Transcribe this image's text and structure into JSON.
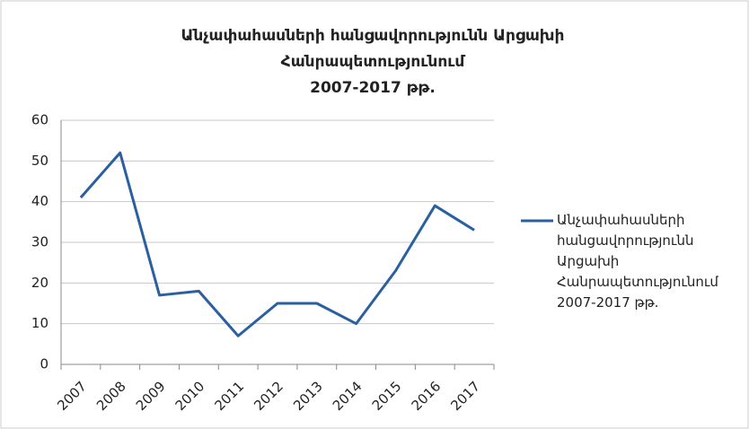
{
  "chart_data": {
    "type": "line",
    "title": [
      "Անչափահասների հանցավորությունն Արցախի",
      "Հանրապետությունում",
      "2007-2017 թթ."
    ],
    "categories": [
      "2007",
      "2008",
      "2009",
      "2010",
      "2011",
      "2012",
      "2013",
      "2014",
      "2015",
      "2016",
      "2017"
    ],
    "series": [
      {
        "name": "Անչափահասների հանցավորությունն Արցախի Հանրապետությունում 2007-2017 թթ.",
        "color": "#2a5fa0",
        "values": [
          41,
          52,
          17,
          18,
          7,
          15,
          15,
          10,
          23,
          39,
          33
        ]
      }
    ],
    "ylim": [
      0,
      60
    ],
    "yticks": [
      0,
      10,
      20,
      30,
      40,
      50,
      60
    ],
    "grid": true,
    "legend": "right"
  }
}
